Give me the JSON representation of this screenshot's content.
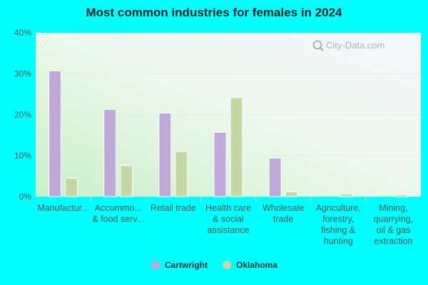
{
  "chart_data": {
    "type": "bar",
    "title": "Most common industries for females in 2024",
    "xlabel": "",
    "ylabel": "",
    "ylim": [
      0,
      40
    ],
    "yticks": [
      "0%",
      "10%",
      "20%",
      "30%",
      "40%"
    ],
    "categories": [
      [
        "Manufactur..."
      ],
      [
        "Accommo...",
        "& food serv..."
      ],
      [
        "Retail trade"
      ],
      [
        "Health care",
        "& social",
        "assistance"
      ],
      [
        "Wholesale",
        "trade"
      ],
      [
        "Agriculture,",
        "forestry,",
        "fishing &",
        "hunting"
      ],
      [
        "Mining,",
        "quarrying,",
        "oil & gas",
        "extraction"
      ]
    ],
    "series": [
      {
        "name": "Cartwright",
        "color": "#c0a8d8",
        "values": [
          30.7,
          21.3,
          20.4,
          15.7,
          9.4,
          0,
          0
        ]
      },
      {
        "name": "Oklahoma",
        "color": "#c5d8a4",
        "values": [
          4.5,
          7.6,
          11.0,
          24.2,
          1.2,
          0.7,
          0.5
        ]
      }
    ],
    "legend_position": "bottom",
    "grid": true
  },
  "watermark": {
    "text": "City-Data.com",
    "icon": "magnifier-icon"
  }
}
